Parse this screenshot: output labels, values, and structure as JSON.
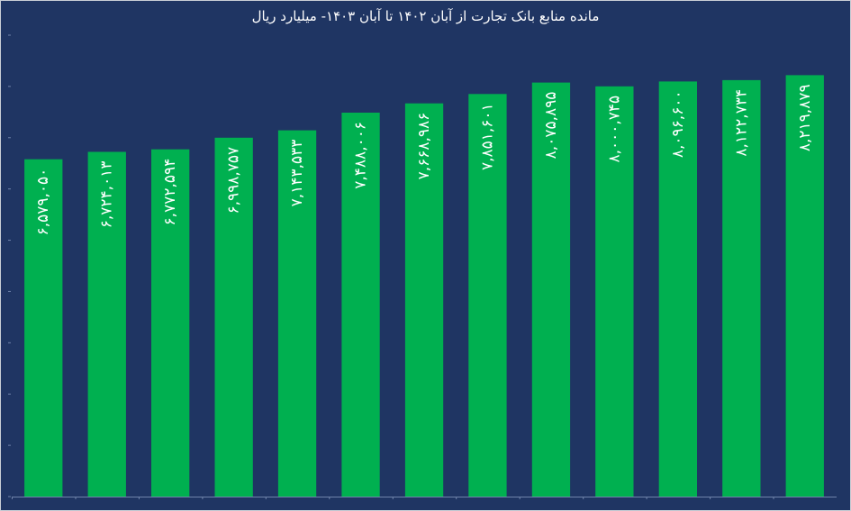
{
  "chart_data": {
    "type": "bar",
    "title": "مانده منابع بانک تجارت از آبان ۱۴۰۲ تا آبان ۱۴۰۳- میلیارد ریال",
    "ylim": [
      0,
      9000000
    ],
    "grid": false,
    "legend": "none",
    "values": [
      6579050,
      6724013,
      6772594,
      6998757,
      7143533,
      7488006,
      7668986,
      7851601,
      8075895,
      8000745,
      8096600,
      8122734,
      8219879
    ],
    "labels": [
      "۶,۵۷۹,۰۵۰",
      "۶,۷۲۴,۰۱۳",
      "۶,۷۷۲,۵۹۴",
      "۶,۹۹۸,۷۵۷",
      "۷,۱۴۳,۵۳۳",
      "۷,۴۸۸,۰۰۶",
      "۷,۶۶۸,۹۸۶",
      "۷,۸۵۱,۶۰۱",
      "۸,۰۷۵,۸۹۵",
      "۸,۰۰۰,۷۴۵",
      "۸,۰۹۶,۶۰۰",
      "۸,۱۲۲,۷۳۴",
      "۸,۲۱۹,۸۷۹"
    ]
  },
  "colors": {
    "background": "#1f3563",
    "bar": "#00b050",
    "label": "#ffffff",
    "tick": "#6f83aa"
  }
}
